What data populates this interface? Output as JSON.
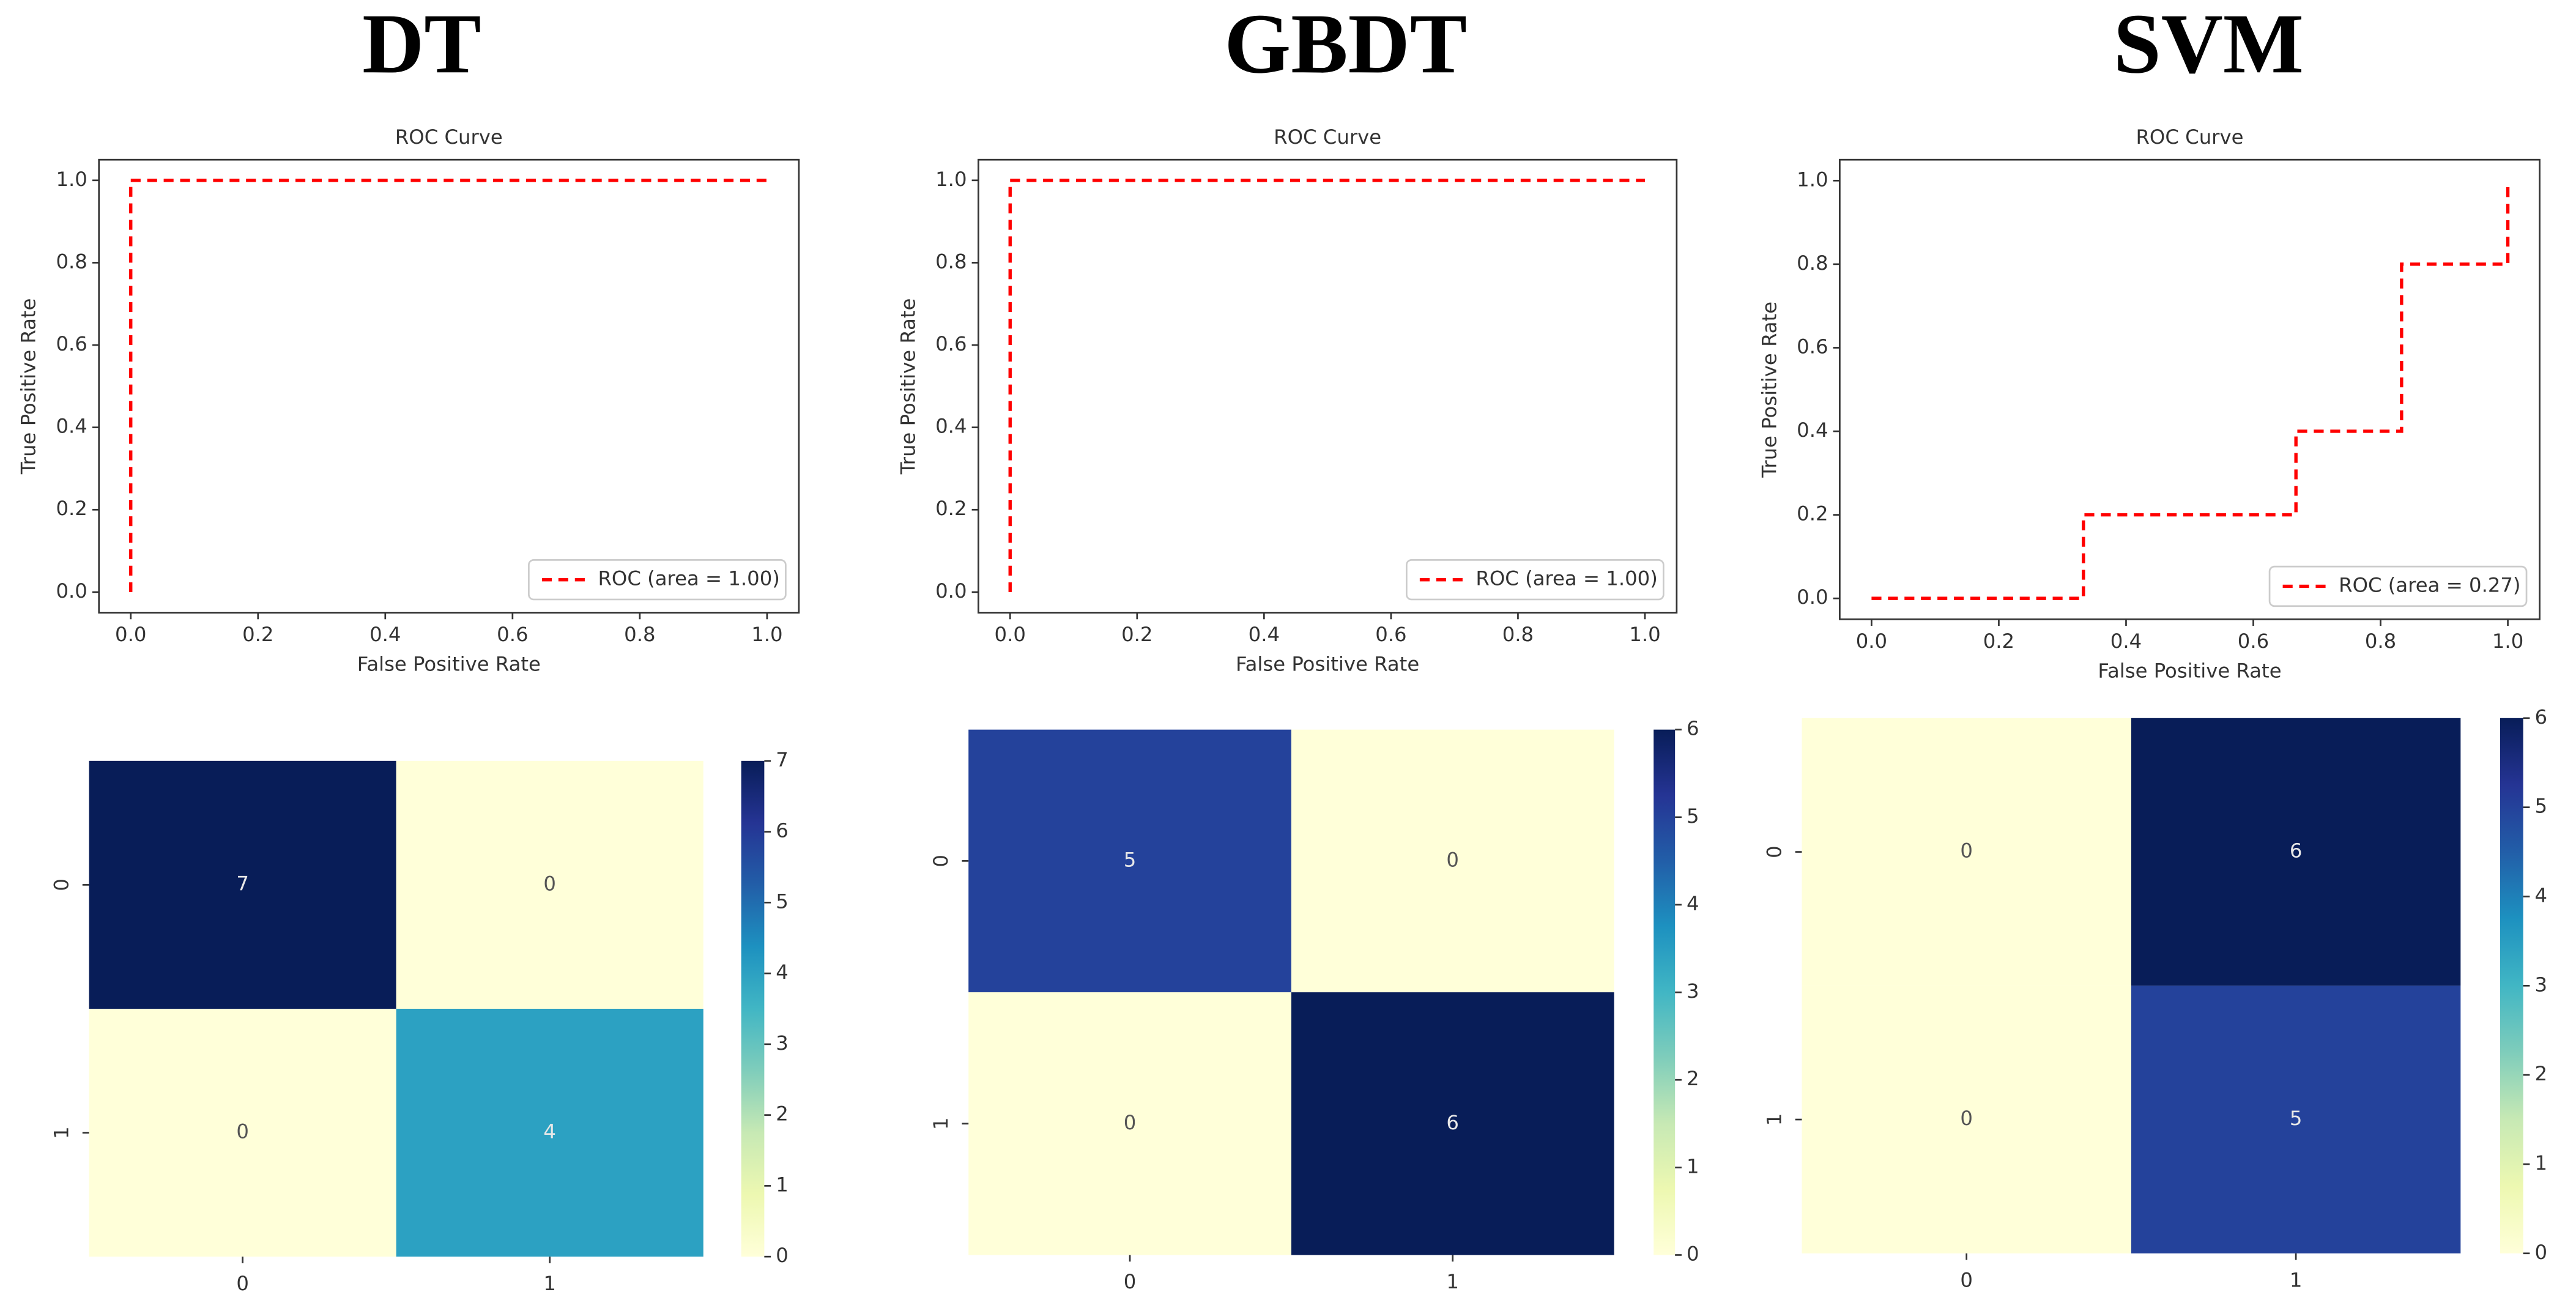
{
  "titles": [
    "DT",
    "GBDT",
    "SVM"
  ],
  "chart_data": [
    {
      "type": "line",
      "title": "ROC Curve",
      "x_label": "False Positive Rate",
      "y_label": "True Positive Rate",
      "x": [
        0,
        0,
        1
      ],
      "series": [
        {
          "name": "ROC (area = 1.00)",
          "color": "#ff0000",
          "values": [
            0,
            1,
            1
          ]
        }
      ],
      "xlim": [
        -0.05,
        1.05
      ],
      "ylim": [
        -0.05,
        1.05
      ],
      "xticks": [
        {
          "value": 0,
          "label": "0.0"
        },
        {
          "value": 0.2,
          "label": "0.2"
        },
        {
          "value": 0.4,
          "label": "0.4"
        },
        {
          "value": 0.6,
          "label": "0.6"
        },
        {
          "value": 0.8,
          "label": "0.8"
        },
        {
          "value": 1,
          "label": "1.0"
        }
      ],
      "yticks": [
        {
          "value": 0,
          "label": "0.0"
        },
        {
          "value": 0.2,
          "label": "0.2"
        },
        {
          "value": 0.4,
          "label": "0.4"
        },
        {
          "value": 0.6,
          "label": "0.6"
        },
        {
          "value": 0.8,
          "label": "0.8"
        },
        {
          "value": 1,
          "label": "1.0"
        }
      ],
      "legend": "lower right"
    },
    {
      "type": "line",
      "title": "ROC Curve",
      "x_label": "False Positive Rate",
      "y_label": "True Positive Rate",
      "x": [
        0,
        0,
        1
      ],
      "series": [
        {
          "name": "ROC (area = 1.00)",
          "color": "#ff0000",
          "values": [
            0,
            1,
            1
          ]
        }
      ],
      "xlim": [
        -0.05,
        1.05
      ],
      "ylim": [
        -0.05,
        1.05
      ],
      "xticks": [
        {
          "value": 0,
          "label": "0.0"
        },
        {
          "value": 0.2,
          "label": "0.2"
        },
        {
          "value": 0.4,
          "label": "0.4"
        },
        {
          "value": 0.6,
          "label": "0.6"
        },
        {
          "value": 0.8,
          "label": "0.8"
        },
        {
          "value": 1,
          "label": "1.0"
        }
      ],
      "yticks": [
        {
          "value": 0,
          "label": "0.0"
        },
        {
          "value": 0.2,
          "label": "0.2"
        },
        {
          "value": 0.4,
          "label": "0.4"
        },
        {
          "value": 0.6,
          "label": "0.6"
        },
        {
          "value": 0.8,
          "label": "0.8"
        },
        {
          "value": 1,
          "label": "1.0"
        }
      ],
      "legend": "lower right"
    },
    {
      "type": "line",
      "title": "ROC Curve",
      "x_label": "False Positive Rate",
      "y_label": "True Positive Rate",
      "x": [
        0,
        0.333,
        0.333,
        0.667,
        0.667,
        0.833,
        0.833,
        1,
        1
      ],
      "series": [
        {
          "name": "ROC (area = 0.27)",
          "color": "#ff0000",
          "values": [
            0,
            0,
            0.2,
            0.2,
            0.4,
            0.4,
            0.8,
            0.8,
            1
          ]
        }
      ],
      "xlim": [
        -0.05,
        1.05
      ],
      "ylim": [
        -0.05,
        1.05
      ],
      "xticks": [
        {
          "value": 0,
          "label": "0.0"
        },
        {
          "value": 0.2,
          "label": "0.2"
        },
        {
          "value": 0.4,
          "label": "0.4"
        },
        {
          "value": 0.6,
          "label": "0.6"
        },
        {
          "value": 0.8,
          "label": "0.8"
        },
        {
          "value": 1,
          "label": "1.0"
        }
      ],
      "yticks": [
        {
          "value": 0,
          "label": "0.0"
        },
        {
          "value": 0.2,
          "label": "0.2"
        },
        {
          "value": 0.4,
          "label": "0.4"
        },
        {
          "value": 0.6,
          "label": "0.6"
        },
        {
          "value": 0.8,
          "label": "0.8"
        },
        {
          "value": 1,
          "label": "1.0"
        }
      ],
      "legend": "lower right"
    },
    {
      "type": "heatmap",
      "x_categories": [
        "0",
        "1"
      ],
      "y_categories": [
        "0",
        "1"
      ],
      "values": [
        [
          7,
          0
        ],
        [
          0,
          4
        ]
      ],
      "colormap": "YlGnBu",
      "clim": [
        0,
        7
      ],
      "cticks": [
        0,
        1,
        2,
        3,
        4,
        5,
        6,
        7
      ]
    },
    {
      "type": "heatmap",
      "x_categories": [
        "0",
        "1"
      ],
      "y_categories": [
        "0",
        "1"
      ],
      "values": [
        [
          5,
          0
        ],
        [
          0,
          6
        ]
      ],
      "colormap": "YlGnBu",
      "clim": [
        0,
        6
      ],
      "cticks": [
        0,
        1,
        2,
        3,
        4,
        5,
        6
      ]
    },
    {
      "type": "heatmap",
      "x_categories": [
        "0",
        "1"
      ],
      "y_categories": [
        "0",
        "1"
      ],
      "values": [
        [
          0,
          6
        ],
        [
          0,
          5
        ]
      ],
      "colormap": "YlGnBu",
      "clim": [
        0,
        6
      ],
      "cticks": [
        0,
        1,
        2,
        3,
        4,
        5,
        6
      ]
    }
  ]
}
